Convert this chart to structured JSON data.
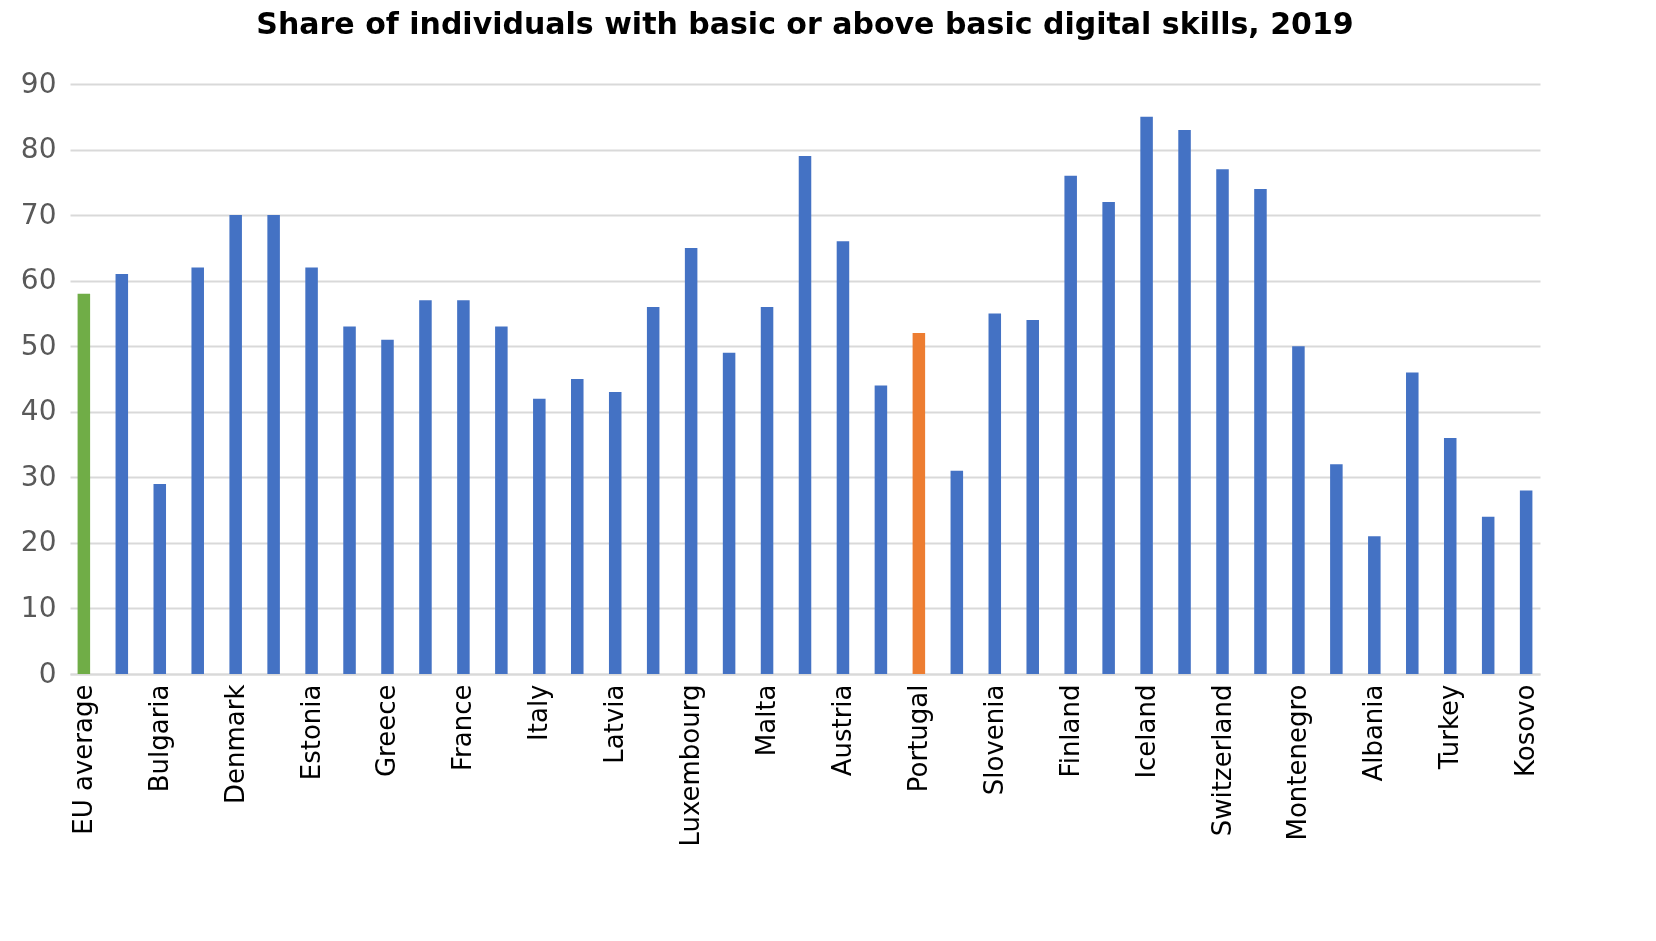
{
  "chart_data": {
    "type": "bar",
    "title": "Share of individuals with basic or above basic digital skills, 2019",
    "categories": [
      "EU average",
      null,
      "Bulgaria",
      null,
      "Denmark",
      null,
      "Estonia",
      null,
      "Greece",
      null,
      "France",
      null,
      "Italy",
      null,
      "Latvia",
      null,
      "Luxembourg",
      null,
      "Malta",
      null,
      "Austria",
      null,
      "Portugal",
      null,
      "Slovenia",
      null,
      "Finland",
      null,
      "Iceland",
      null,
      "Switzerland",
      null,
      "Montenegro",
      null,
      "Albania",
      null,
      "Turkey",
      null,
      "Kosovo"
    ],
    "values": [
      58,
      61,
      29,
      62,
      70,
      70,
      62,
      53,
      51,
      57,
      57,
      53,
      42,
      45,
      43,
      56,
      65,
      49,
      56,
      79,
      66,
      44,
      52,
      31,
      55,
      54,
      76,
      72,
      85,
      83,
      77,
      74,
      50,
      32,
      21,
      46,
      36,
      24,
      28
    ],
    "colors": [
      "#70ad47",
      "#4472c4",
      "#4472c4",
      "#4472c4",
      "#4472c4",
      "#4472c4",
      "#4472c4",
      "#4472c4",
      "#4472c4",
      "#4472c4",
      "#4472c4",
      "#4472c4",
      "#4472c4",
      "#4472c4",
      "#4472c4",
      "#4472c4",
      "#4472c4",
      "#4472c4",
      "#4472c4",
      "#4472c4",
      "#4472c4",
      "#4472c4",
      "#ed7d31",
      "#4472c4",
      "#4472c4",
      "#4472c4",
      "#4472c4",
      "#4472c4",
      "#4472c4",
      "#4472c4",
      "#4472c4",
      "#4472c4",
      "#4472c4",
      "#4472c4",
      "#4472c4",
      "#4472c4",
      "#4472c4",
      "#4472c4",
      "#4472c4"
    ],
    "ylim": [
      0,
      90
    ],
    "yticks": [
      0,
      10,
      20,
      30,
      40,
      50,
      60,
      70,
      80,
      90
    ],
    "grid": "y"
  }
}
